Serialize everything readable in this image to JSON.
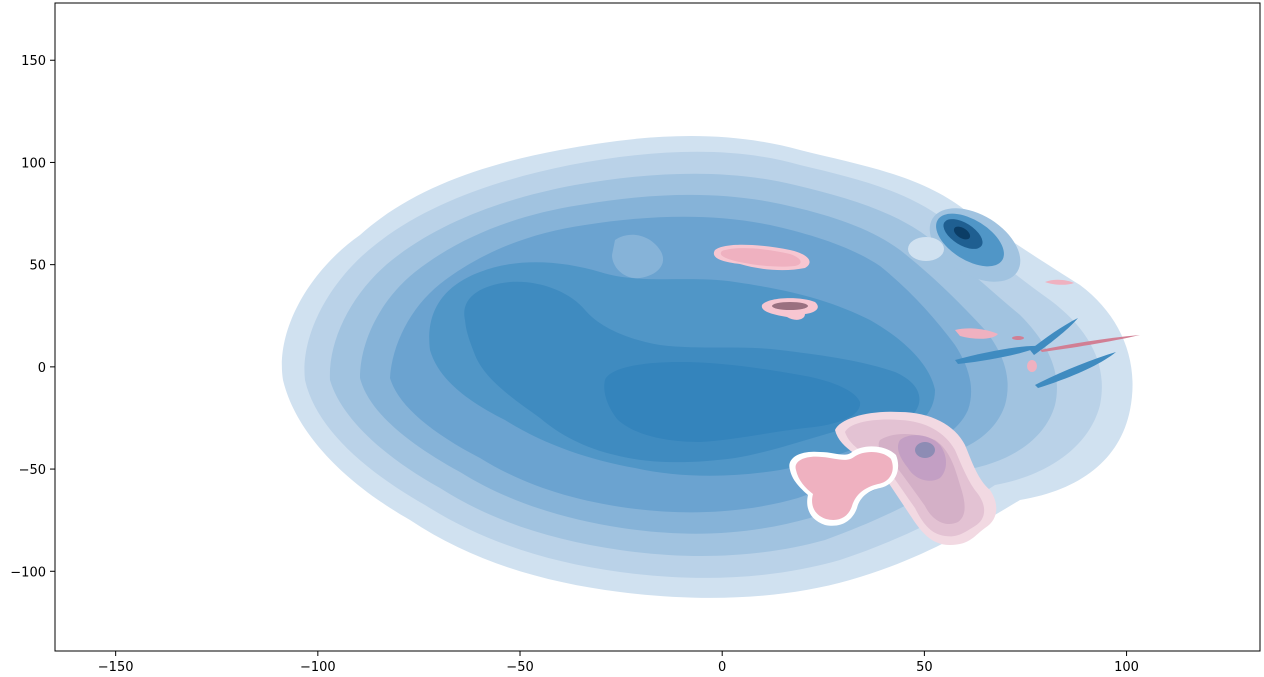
{
  "chart_data": {
    "type": "kde-contour",
    "title": "",
    "xlabel": "",
    "ylabel": "",
    "xlim": [
      -165,
      133
    ],
    "ylim": [
      -139,
      178
    ],
    "xticks": [
      -150,
      -100,
      -50,
      0,
      50,
      100
    ],
    "yticks": [
      -100,
      -50,
      0,
      50,
      100,
      150
    ],
    "xtick_labels": [
      "−150",
      "−100",
      "−50",
      "0",
      "50",
      "100"
    ],
    "ytick_labels": [
      "−100",
      "−50",
      "0",
      "50",
      "100",
      "150"
    ],
    "grid": false,
    "legend": "none",
    "colors": {
      "blue_levels": [
        "#d0e1f0",
        "#bad2e8",
        "#a1c3e0",
        "#86b3d8",
        "#6ba3d0",
        "#5096c7",
        "#3f8bc0",
        "#3484bc"
      ],
      "pink_levels": [
        "#f7c6d1",
        "#efb1c0",
        "#e3a7ba",
        "#d4a3bf",
        "#c39fc4",
        "#a99bc7"
      ],
      "peak_navy": "#0b3d66"
    },
    "series": [
      {
        "group": "blue",
        "x_range": [
          -110,
          105
        ],
        "y_range": [
          -112,
          114
        ],
        "levels": 8,
        "modes": [
          {
            "x": -45,
            "y": 28
          },
          {
            "x": -15,
            "y": -15
          },
          {
            "x": 40,
            "y": 5
          },
          {
            "x": 60,
            "y": 65
          }
        ]
      },
      {
        "group": "pink",
        "x_range": [
          0,
          105
        ],
        "y_range": [
          -88,
          59
        ],
        "regions": [
          {
            "x": 10,
            "y": 52
          },
          {
            "x": 18,
            "y": 30
          },
          {
            "x": 27,
            "y": -55
          },
          {
            "x": 50,
            "y": -45
          },
          {
            "x": 84,
            "y": 42
          },
          {
            "x": 66,
            "y": 17
          }
        ]
      }
    ]
  }
}
